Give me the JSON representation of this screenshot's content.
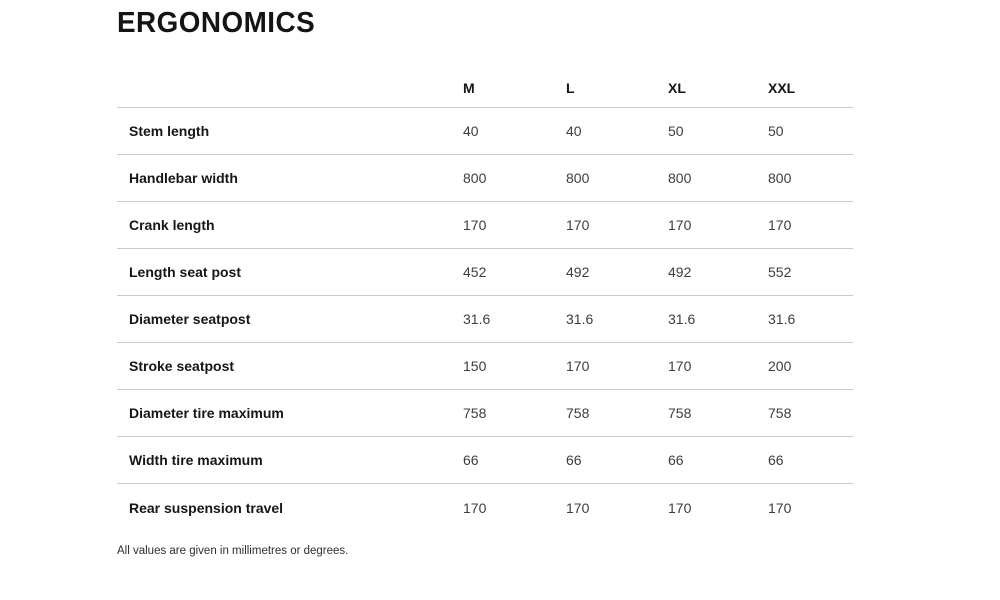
{
  "page": {
    "title": "ERGONOMICS",
    "footnote": "All values are given in millimetres or degrees."
  },
  "table": {
    "columns": [
      "M",
      "L",
      "XL",
      "XXL"
    ],
    "rows": [
      {
        "label": "Stem length",
        "values": [
          "40",
          "40",
          "50",
          "50"
        ]
      },
      {
        "label": "Handlebar width",
        "values": [
          "800",
          "800",
          "800",
          "800"
        ]
      },
      {
        "label": "Crank length",
        "values": [
          "170",
          "170",
          "170",
          "170"
        ]
      },
      {
        "label": "Length seat post",
        "values": [
          "452",
          "492",
          "492",
          "552"
        ]
      },
      {
        "label": "Diameter seatpost",
        "values": [
          "31.6",
          "31.6",
          "31.6",
          "31.6"
        ]
      },
      {
        "label": "Stroke seatpost",
        "values": [
          "150",
          "170",
          "170",
          "200"
        ]
      },
      {
        "label": "Diameter tire maximum",
        "values": [
          "758",
          "758",
          "758",
          "758"
        ]
      },
      {
        "label": "Width tire maximum",
        "values": [
          "66",
          "66",
          "66",
          "66"
        ]
      },
      {
        "label": "Rear suspension travel",
        "values": [
          "170",
          "170",
          "170",
          "170"
        ]
      }
    ]
  },
  "colors": {
    "background": "#ffffff",
    "text_primary": "#161616",
    "text_values": "#3d3d3d",
    "divider": "#cbcbcb"
  }
}
